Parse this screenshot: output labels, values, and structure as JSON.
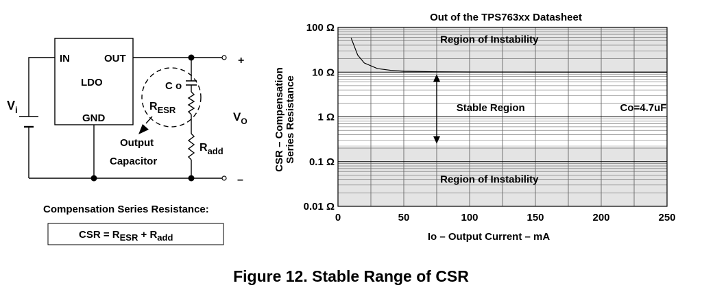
{
  "circuit": {
    "vi_main": "V",
    "vi_sub": "i",
    "ldo_label": "LDO",
    "pin_in": "IN",
    "pin_out": "OUT",
    "pin_gnd": "GND",
    "co_label": "C o",
    "resr_main": "R",
    "resr_sub": "ESR",
    "radd_main": "R",
    "radd_sub": "add",
    "vo_main": "V",
    "vo_sub": "O",
    "plus": "+",
    "minus": "–",
    "output_cap_line1": "Output",
    "output_cap_line2": "Capacitor",
    "csr_heading": "Compensation Series Resistance:",
    "csr_eq_part1": "CSR = R",
    "csr_eq_sub1": "ESR",
    "csr_eq_part2": " + R",
    "csr_eq_sub2": "add"
  },
  "chart_data": {
    "type": "line",
    "title": "Out of the TPS763xx Datasheet",
    "xlabel": "Io – Output Current – mA",
    "ylabel_line1": "CSR – Compensation",
    "ylabel_line2": "Series Resistance",
    "xlim": [
      0,
      250
    ],
    "ylim": [
      0.01,
      100
    ],
    "yscale": "log",
    "x_ticks": [
      0,
      50,
      100,
      150,
      200,
      250
    ],
    "y_ticks": [
      {
        "value": 100,
        "label": "100 Ω"
      },
      {
        "value": 10,
        "label": "10 Ω"
      },
      {
        "value": 1,
        "label": "1 Ω"
      },
      {
        "value": 0.1,
        "label": "0.1 Ω"
      },
      {
        "value": 0.01,
        "label": "0.01 Ω"
      }
    ],
    "grid": true,
    "regions": [
      {
        "label": "Region of Instability",
        "y_from": 10,
        "y_to": 100
      },
      {
        "label": "Region of Instability",
        "y_from": 0.01,
        "y_to": 0.23
      }
    ],
    "stable_label": "Stable Region",
    "annotation": "Co=4.7uF",
    "boundary_curve": {
      "x": [
        10,
        15,
        20,
        30,
        40,
        50,
        75,
        100,
        150,
        200,
        250
      ],
      "y": [
        58,
        24,
        16,
        12,
        11,
        10.5,
        10.2,
        10.1,
        10.05,
        10.02,
        10
      ]
    },
    "arrow_x": 75,
    "arrow_range": [
      0.25,
      9
    ]
  },
  "caption": "Figure 12.  Stable Range of CSR"
}
